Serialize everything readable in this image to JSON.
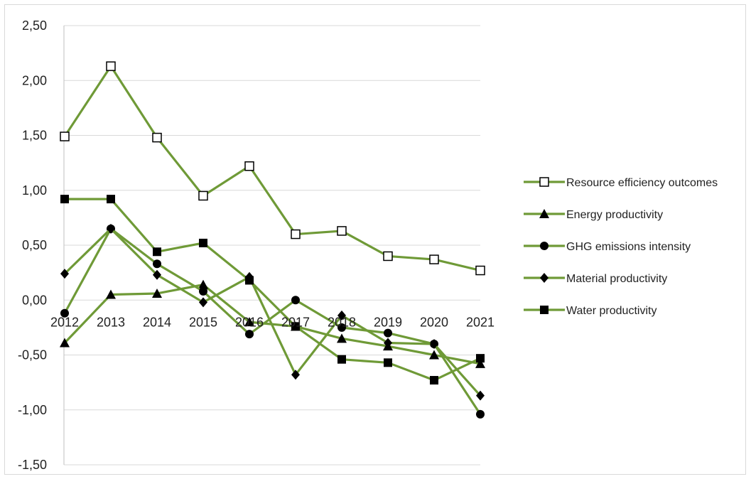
{
  "chart_data": {
    "type": "line",
    "x": [
      "2012",
      "2013",
      "2014",
      "2015",
      "2016",
      "2017",
      "2018",
      "2019",
      "2020",
      "2021"
    ],
    "ylim": [
      -1.5,
      2.5
    ],
    "yticks": [
      2.5,
      2.0,
      1.5,
      1.0,
      0.5,
      0.0,
      -0.5,
      -1.0,
      -1.5
    ],
    "ytick_labels": [
      "2,50",
      "2,00",
      "1,50",
      "1,00",
      "0,50",
      "0,00",
      "-0,50",
      "-1,00",
      "-1,50"
    ],
    "grid": "horizontal",
    "legend_position": "right",
    "line_color": "#6f9a37",
    "marker_color": "#000000",
    "series": [
      {
        "name": "Resource efficiency outcomes",
        "marker": "square-open",
        "values": [
          1.49,
          2.13,
          1.48,
          0.95,
          1.22,
          0.6,
          0.63,
          0.4,
          0.37,
          0.27
        ]
      },
      {
        "name": "Energy productivity",
        "marker": "triangle",
        "values": [
          -0.39,
          0.05,
          0.06,
          0.14,
          -0.2,
          -0.24,
          -0.35,
          -0.42,
          -0.5,
          -0.58
        ]
      },
      {
        "name": "GHG emissions intensity",
        "marker": "circle",
        "values": [
          -0.12,
          0.65,
          0.33,
          0.08,
          -0.31,
          0.0,
          -0.25,
          -0.3,
          -0.4,
          -1.04
        ]
      },
      {
        "name": "Material productivity",
        "marker": "diamond",
        "values": [
          0.24,
          0.65,
          0.23,
          -0.02,
          0.21,
          -0.68,
          -0.14,
          -0.39,
          -0.4,
          -0.87
        ]
      },
      {
        "name": "Water productivity",
        "marker": "square",
        "values": [
          0.92,
          0.92,
          0.44,
          0.52,
          0.18,
          -0.24,
          -0.54,
          -0.57,
          -0.73,
          -0.53
        ]
      }
    ]
  }
}
